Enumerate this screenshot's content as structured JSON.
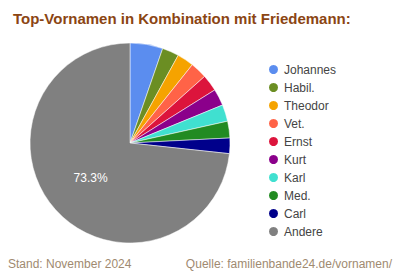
{
  "chart_data": {
    "type": "pie",
    "title": "Top-Vornamen in Kombination mit Friedemann:",
    "categories": [
      "Johannes",
      "Habil.",
      "Theodor",
      "Vet.",
      "Ernst",
      "Kurt",
      "Karl",
      "Med.",
      "Carl",
      "Andere"
    ],
    "values": [
      5.3,
      2.7,
      2.7,
      2.7,
      2.7,
      2.7,
      2.7,
      2.7,
      2.5,
      73.3
    ],
    "value_labels": [
      null,
      null,
      null,
      null,
      null,
      null,
      null,
      null,
      null,
      "73.3%"
    ],
    "colors": [
      "#5b8def",
      "#6b8e23",
      "#f5a300",
      "#ff6347",
      "#dc143c",
      "#8b008b",
      "#40e0d0",
      "#228b22",
      "#00008b",
      "#808080"
    ],
    "legend": "right",
    "annotations": [
      "Stand: November 2024",
      "Quelle: familienbande24.de/vornamen/"
    ]
  }
}
